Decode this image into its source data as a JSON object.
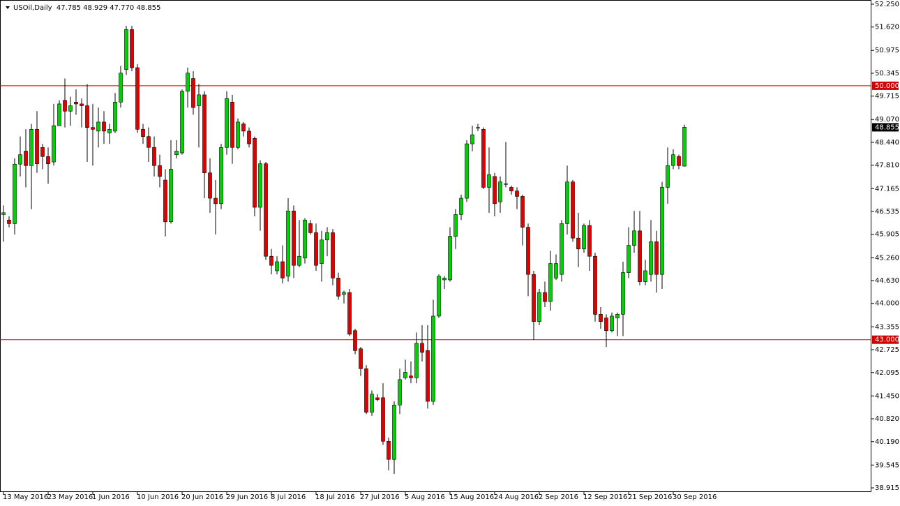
{
  "chart_data": {
    "type": "candlestick",
    "title": "USOil,Daily  47.785 48.929 47.770 48.855",
    "categories": [
      "13 May 2016",
      null,
      null,
      null,
      null,
      null,
      null,
      null,
      "23 May 2016",
      null,
      null,
      null,
      null,
      null,
      null,
      null,
      "1 Jun 2016",
      null,
      null,
      null,
      null,
      null,
      null,
      null,
      "10 Jun 2016",
      null,
      null,
      null,
      null,
      null,
      null,
      null,
      "20 Jun 2016",
      null,
      null,
      null,
      null,
      null,
      null,
      null,
      "29 Jun 2016",
      null,
      null,
      null,
      null,
      null,
      null,
      null,
      "8 Jul 2016",
      null,
      null,
      null,
      null,
      null,
      null,
      null,
      "18 Jul 2016",
      null,
      null,
      null,
      null,
      null,
      null,
      null,
      "27 Jul 2016",
      null,
      null,
      null,
      null,
      null,
      null,
      null,
      "5 Aug 2016",
      null,
      null,
      null,
      null,
      null,
      null,
      null,
      "15 Aug 2016",
      null,
      null,
      null,
      null,
      null,
      null,
      null,
      "24 Aug 2016",
      null,
      null,
      null,
      null,
      null,
      null,
      null,
      "2 Sep 2016",
      null,
      null,
      null,
      null,
      null,
      null,
      null,
      "12 Sep 2016",
      null,
      null,
      null,
      null,
      null,
      null,
      null,
      "21 Sep 2016",
      null,
      null,
      null,
      null,
      null,
      null,
      null,
      "30 Sep 2016",
      null,
      null
    ],
    "open": [
      46.45,
      46.3,
      46.2,
      47.84,
      48.2,
      47.8,
      48.8,
      48.3,
      48.05,
      47.9,
      48.9,
      49.6,
      49.3,
      49.55,
      49.5,
      49.45,
      48.85,
      48.75,
      49.0,
      48.7,
      48.75,
      49.55,
      50.45,
      51.55,
      50.5,
      48.8,
      48.6,
      48.3,
      47.8,
      47.4,
      46.25,
      48.1,
      48.15,
      49.85,
      50.2,
      49.45,
      49.75,
      47.6,
      46.9,
      46.75,
      48.3,
      49.55,
      48.3,
      48.95,
      48.75,
      48.55,
      46.65,
      47.85,
      45.3,
      44.9,
      45.15,
      44.75,
      46.55,
      45.05,
      45.25,
      46.2,
      45.95,
      45.1,
      45.75,
      45.95,
      44.7,
      44.25,
      44.3,
      43.25,
      42.75,
      42.2,
      41.0,
      41.4,
      41.4,
      40.2,
      39.7,
      41.2,
      41.95,
      42.0,
      41.95,
      42.9,
      42.7,
      41.3,
      43.65,
      44.65,
      44.65,
      45.85,
      46.45,
      46.9,
      48.4,
      48.85,
      48.8,
      47.2,
      47.5,
      46.8,
      47.3,
      47.2,
      47.1,
      46.95,
      46.1,
      44.8,
      43.5,
      44.3,
      44.05,
      44.7,
      44.8,
      46.2,
      47.35,
      45.8,
      45.5,
      46.15,
      45.3,
      43.7,
      43.6,
      43.25,
      43.6,
      43.7,
      44.85,
      45.6,
      46.0,
      44.6,
      44.8,
      45.7,
      44.8,
      47.2,
      47.8,
      48.05,
      47.785
    ],
    "high": [
      46.7,
      46.4,
      48.0,
      48.6,
      48.8,
      48.95,
      49.3,
      48.4,
      48.3,
      49.5,
      49.6,
      50.2,
      49.7,
      49.9,
      49.65,
      50.05,
      49.5,
      49.4,
      49.3,
      48.95,
      49.8,
      50.55,
      51.65,
      51.65,
      50.6,
      48.95,
      48.85,
      48.6,
      48.1,
      47.7,
      48.5,
      48.5,
      49.9,
      50.5,
      50.4,
      50.05,
      49.85,
      48.0,
      47.4,
      48.4,
      49.85,
      49.75,
      49.1,
      49.0,
      48.85,
      48.6,
      47.95,
      47.9,
      45.5,
      45.3,
      45.6,
      46.9,
      46.7,
      46.3,
      46.35,
      46.3,
      46.2,
      46.0,
      46.1,
      46.05,
      44.85,
      44.35,
      44.4,
      43.3,
      42.8,
      42.3,
      41.6,
      41.5,
      41.8,
      40.3,
      41.3,
      42.2,
      42.45,
      42.4,
      43.2,
      43.4,
      43.4,
      44.1,
      44.8,
      44.75,
      46.1,
      46.6,
      47.0,
      48.5,
      48.9,
      48.95,
      48.85,
      48.3,
      47.6,
      47.5,
      48.45,
      47.25,
      47.2,
      47.0,
      46.2,
      44.9,
      44.4,
      44.6,
      45.45,
      45.35,
      46.3,
      47.8,
      47.4,
      46.5,
      46.2,
      46.3,
      45.4,
      43.9,
      43.7,
      43.75,
      43.75,
      45.15,
      46.1,
      46.55,
      46.55,
      45.2,
      46.3,
      46.0,
      47.35,
      48.3,
      48.25,
      48.1,
      48.929
    ],
    "low": [
      45.7,
      46.1,
      45.9,
      47.5,
      47.2,
      46.6,
      47.6,
      47.7,
      47.3,
      47.8,
      48.9,
      48.85,
      48.9,
      49.2,
      48.85,
      47.9,
      47.8,
      48.3,
      48.4,
      48.4,
      48.7,
      49.4,
      50.3,
      50.4,
      48.7,
      48.4,
      47.9,
      47.5,
      47.2,
      45.85,
      46.2,
      48.0,
      48.1,
      49.4,
      49.2,
      48.3,
      46.9,
      46.5,
      45.9,
      46.6,
      48.1,
      47.85,
      48.25,
      48.6,
      48.3,
      46.4,
      46.0,
      45.2,
      44.8,
      44.8,
      44.55,
      44.6,
      44.7,
      45.0,
      45.1,
      45.9,
      44.9,
      44.6,
      45.3,
      44.5,
      44.1,
      44.0,
      43.1,
      42.6,
      42.0,
      40.95,
      40.9,
      41.3,
      40.1,
      39.4,
      39.3,
      40.95,
      41.9,
      41.8,
      41.8,
      42.4,
      41.1,
      41.2,
      43.6,
      44.4,
      44.6,
      45.5,
      46.3,
      46.8,
      48.2,
      48.75,
      47.15,
      46.5,
      46.4,
      46.5,
      47.2,
      47.0,
      46.6,
      45.6,
      44.2,
      43.0,
      43.4,
      43.9,
      43.8,
      44.65,
      44.6,
      45.9,
      45.7,
      45.0,
      45.4,
      44.9,
      43.5,
      43.3,
      42.8,
      43.2,
      43.1,
      43.1,
      44.7,
      45.4,
      44.5,
      44.5,
      44.6,
      44.3,
      44.4,
      46.75,
      47.7,
      47.7,
      47.77
    ],
    "close": [
      46.5,
      46.2,
      47.84,
      48.1,
      47.8,
      48.8,
      47.85,
      48.05,
      47.85,
      48.9,
      49.5,
      49.3,
      49.45,
      49.5,
      49.45,
      48.85,
      48.8,
      49.0,
      48.75,
      48.8,
      49.55,
      50.35,
      51.55,
      50.5,
      48.8,
      48.6,
      48.3,
      47.8,
      47.5,
      46.25,
      47.7,
      48.2,
      49.85,
      50.35,
      49.4,
      49.75,
      47.6,
      46.9,
      46.75,
      48.3,
      49.65,
      48.3,
      49.0,
      48.75,
      48.4,
      46.65,
      47.85,
      45.3,
      45.05,
      45.15,
      44.7,
      46.55,
      45.05,
      45.3,
      46.3,
      45.95,
      45.05,
      45.75,
      45.95,
      44.7,
      44.2,
      44.3,
      43.15,
      42.7,
      42.2,
      41.0,
      41.5,
      41.35,
      40.2,
      39.7,
      41.2,
      41.9,
      42.1,
      41.95,
      42.9,
      42.65,
      41.3,
      43.65,
      44.75,
      44.7,
      45.85,
      46.45,
      46.9,
      48.4,
      48.65,
      48.85,
      47.2,
      47.55,
      46.75,
      47.35,
      47.3,
      47.1,
      46.95,
      46.1,
      44.8,
      43.5,
      44.3,
      44.05,
      45.1,
      45.1,
      46.2,
      47.35,
      45.8,
      45.5,
      46.15,
      45.3,
      43.7,
      43.5,
      43.25,
      43.65,
      43.7,
      44.85,
      45.6,
      46.0,
      44.6,
      44.9,
      45.7,
      44.8,
      47.2,
      47.8,
      48.1,
      47.8,
      48.855
    ],
    "up_color": "#00d000",
    "down_color": "#e00000",
    "wick_color": "#000000",
    "ylim": [
      38.8,
      52.365
    ],
    "yticks": [
      {
        "value": 38.915,
        "label": "38.915"
      },
      {
        "value": 39.545,
        "label": "39.545"
      },
      {
        "value": 40.19,
        "label": "40.190"
      },
      {
        "value": 40.82,
        "label": "40.820"
      },
      {
        "value": 41.45,
        "label": "41.450"
      },
      {
        "value": 42.095,
        "label": "42.095"
      },
      {
        "value": 42.725,
        "label": "42.725"
      },
      {
        "value": 43.355,
        "label": "43.355"
      },
      {
        "value": 44,
        "label": "44.000"
      },
      {
        "value": 44.63,
        "label": "44.630"
      },
      {
        "value": 45.26,
        "label": "45.260"
      },
      {
        "value": 45.905,
        "label": "45.905"
      },
      {
        "value": 46.535,
        "label": "46.535"
      },
      {
        "value": 47.165,
        "label": "47.165"
      },
      {
        "value": 47.81,
        "label": "47.810"
      },
      {
        "value": 48.44,
        "label": "48.440"
      },
      {
        "value": 49.07,
        "label": "49.070"
      },
      {
        "value": 49.715,
        "label": "49.715"
      },
      {
        "value": 50.345,
        "label": "50.345"
      },
      {
        "value": 50.975,
        "label": "50.975"
      },
      {
        "value": 51.62,
        "label": "51.620"
      },
      {
        "value": 52.25,
        "label": "52.250"
      }
    ],
    "hlines": [
      {
        "value": 50,
        "label": "50.000",
        "color": "#d00000"
      },
      {
        "value": 43,
        "label": "43.000",
        "color": "#d00000"
      }
    ],
    "last_price": {
      "value": 48.855,
      "label": "48.855",
      "color": "#000000"
    },
    "grid": false
  }
}
